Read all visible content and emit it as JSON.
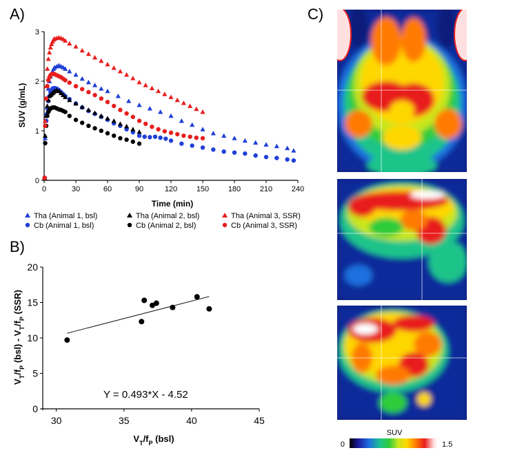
{
  "panels": {
    "a_label": "A)",
    "b_label": "B)",
    "c_label": "C)"
  },
  "chart_data": [
    {
      "type": "scatter",
      "panel": "A)",
      "xlabel": "Time (min)",
      "ylabel": "SUV (g/mL)",
      "xlim": [
        0,
        240
      ],
      "ylim": [
        0,
        3
      ],
      "xticks": [
        "0",
        "30",
        "60",
        "90",
        "120",
        "150",
        "180",
        "210",
        "240"
      ],
      "yticks": [
        "0",
        "1",
        "2",
        "3"
      ],
      "legend_position": "bottom",
      "series": [
        {
          "name": "Tha (Animal 1, bsl)",
          "color": "#1f3fd6",
          "marker": "triangle",
          "x": [
            0.5,
            1,
            2,
            3,
            4,
            5,
            6,
            7,
            8,
            9,
            10,
            12,
            14,
            16,
            18,
            20,
            24,
            30,
            36,
            42,
            48,
            54,
            60,
            70,
            80,
            90,
            100,
            110,
            120,
            130,
            140,
            150,
            160,
            170,
            180,
            190,
            200,
            210,
            220,
            230,
            236
          ],
          "y": [
            0.05,
            0.85,
            1.35,
            1.65,
            1.85,
            2.0,
            2.1,
            2.15,
            2.2,
            2.25,
            2.28,
            2.3,
            2.32,
            2.3,
            2.28,
            2.25,
            2.2,
            2.13,
            2.05,
            1.98,
            1.92,
            1.85,
            1.8,
            1.7,
            1.6,
            1.52,
            1.45,
            1.38,
            1.3,
            1.2,
            1.12,
            1.03,
            0.95,
            0.9,
            0.85,
            0.8,
            0.76,
            0.72,
            0.69,
            0.65,
            0.6
          ]
        },
        {
          "name": "Cb (Animal 1, bsl)",
          "color": "#1f3fd6",
          "marker": "circle",
          "x": [
            0.5,
            1,
            2,
            3,
            4,
            5,
            6,
            7,
            8,
            9,
            10,
            12,
            14,
            16,
            18,
            20,
            24,
            30,
            36,
            42,
            48,
            54,
            60,
            66,
            72,
            78,
            84,
            90,
            95,
            100,
            105,
            110,
            115,
            120,
            130,
            140,
            150,
            160,
            170,
            180,
            190,
            200,
            210,
            220,
            230,
            236
          ],
          "y": [
            0.05,
            0.75,
            1.2,
            1.45,
            1.6,
            1.7,
            1.78,
            1.82,
            1.85,
            1.86,
            1.86,
            1.85,
            1.82,
            1.78,
            1.74,
            1.7,
            1.64,
            1.55,
            1.47,
            1.4,
            1.34,
            1.28,
            1.22,
            1.15,
            1.1,
            1.03,
            0.97,
            0.9,
            0.88,
            0.87,
            0.88,
            0.86,
            0.84,
            0.8,
            0.74,
            0.7,
            0.66,
            0.62,
            0.58,
            0.56,
            0.54,
            0.5,
            0.47,
            0.45,
            0.42,
            0.4
          ]
        },
        {
          "name": "Tha (Animal 2, bsl)",
          "color": "#000000",
          "marker": "triangle",
          "x": [
            0.5,
            1,
            2,
            3,
            4,
            5,
            6,
            7,
            8,
            9,
            10,
            12,
            14,
            16,
            18,
            20,
            24,
            30,
            36,
            42,
            48,
            54,
            60,
            66,
            72,
            78,
            84,
            90
          ],
          "y": [
            0.05,
            0.9,
            1.3,
            1.5,
            1.62,
            1.7,
            1.72,
            1.74,
            1.76,
            1.78,
            1.8,
            1.82,
            1.8,
            1.76,
            1.72,
            1.68,
            1.62,
            1.55,
            1.48,
            1.42,
            1.36,
            1.3,
            1.25,
            1.2,
            1.14,
            1.09,
            1.03,
            0.98
          ]
        },
        {
          "name": "Cb (Animal 2, bsl)",
          "color": "#000000",
          "marker": "circle",
          "x": [
            0.5,
            1,
            2,
            3,
            4,
            5,
            6,
            7,
            8,
            9,
            10,
            12,
            14,
            16,
            18,
            20,
            24,
            30,
            36,
            42,
            48,
            54,
            60,
            66,
            72,
            78,
            84,
            90
          ],
          "y": [
            0.05,
            0.75,
            1.1,
            1.3,
            1.38,
            1.42,
            1.45,
            1.46,
            1.47,
            1.47,
            1.47,
            1.45,
            1.43,
            1.42,
            1.4,
            1.38,
            1.3,
            1.22,
            1.16,
            1.1,
            1.05,
            1.0,
            0.95,
            0.9,
            0.85,
            0.82,
            0.78,
            0.74
          ]
        },
        {
          "name": "Tha (Animal 3, SSR)",
          "color": "#e81e1e",
          "marker": "triangle",
          "x": [
            0.5,
            1,
            2,
            3,
            4,
            5,
            6,
            7,
            8,
            9,
            10,
            12,
            14,
            16,
            18,
            20,
            24,
            30,
            36,
            42,
            48,
            54,
            60,
            66,
            72,
            78,
            84,
            90,
            96,
            102,
            108,
            114,
            120,
            126,
            132,
            138,
            144,
            150
          ],
          "y": [
            0.05,
            1.2,
            1.9,
            2.25,
            2.45,
            2.58,
            2.68,
            2.75,
            2.8,
            2.84,
            2.86,
            2.87,
            2.88,
            2.87,
            2.85,
            2.82,
            2.76,
            2.7,
            2.62,
            2.55,
            2.48,
            2.41,
            2.34,
            2.27,
            2.2,
            2.13,
            2.06,
            1.98,
            1.92,
            1.86,
            1.8,
            1.74,
            1.68,
            1.62,
            1.56,
            1.5,
            1.44,
            1.38
          ]
        },
        {
          "name": "Cb (Animal 3, SSR)",
          "color": "#e81e1e",
          "marker": "circle",
          "x": [
            0.5,
            1,
            2,
            3,
            4,
            5,
            6,
            7,
            8,
            9,
            10,
            12,
            14,
            16,
            18,
            20,
            24,
            30,
            36,
            42,
            48,
            54,
            60,
            66,
            72,
            78,
            84,
            90,
            96,
            102,
            108,
            114,
            120,
            126,
            132,
            138,
            144,
            150
          ],
          "y": [
            0.05,
            1.1,
            1.65,
            1.9,
            2.02,
            2.08,
            2.12,
            2.14,
            2.15,
            2.15,
            2.14,
            2.12,
            2.1,
            2.08,
            2.05,
            2.02,
            1.97,
            1.9,
            1.84,
            1.78,
            1.72,
            1.65,
            1.58,
            1.5,
            1.42,
            1.35,
            1.28,
            1.2,
            1.14,
            1.08,
            1.03,
            0.99,
            0.96,
            0.93,
            0.9,
            0.88,
            0.86,
            0.85
          ]
        }
      ]
    },
    {
      "type": "scatter",
      "panel": "B)",
      "xlabel": "VT/fP (bsl)",
      "ylabel": "VT/fP (bsl) - VT/fP (SSR)",
      "xlim": [
        29,
        45
      ],
      "ylim": [
        0,
        20
      ],
      "xticks": [
        "30",
        "35",
        "40",
        "45"
      ],
      "yticks": [
        "0",
        "5",
        "10",
        "15",
        "20"
      ],
      "points": {
        "x": [
          30.8,
          36.3,
          36.5,
          37.1,
          37.4,
          38.6,
          40.4,
          41.3
        ],
        "y": [
          9.7,
          12.3,
          15.3,
          14.6,
          14.9,
          14.3,
          15.8,
          14.1
        ]
      },
      "fit_line": {
        "slope": 0.493,
        "intercept": -4.52,
        "x_range": [
          30.8,
          41.3
        ]
      },
      "annotation": "Y = 0.493*X - 4.52"
    },
    {
      "type": "heatmap",
      "panel": "C)",
      "colorbar_label": "SUV",
      "colorbar_min": "0",
      "colorbar_max": "1.5",
      "colormap": [
        "#000000",
        "#1a1a9e",
        "#1f6fe0",
        "#1ec48a",
        "#2ecc3a",
        "#c8e61e",
        "#ffd700",
        "#ff7a00",
        "#e81e1e",
        "#ffd6d6",
        "#ffffff"
      ]
    }
  ]
}
